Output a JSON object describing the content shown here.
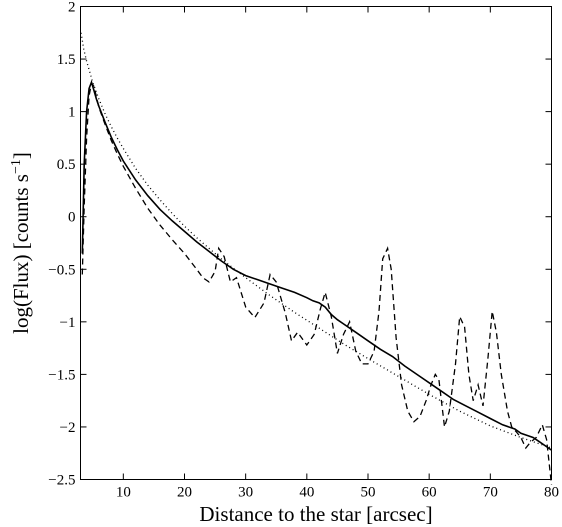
{
  "chart_data": {
    "type": "line",
    "title": "",
    "xlabel": "Distance to the star [arcsec]",
    "ylabel_main": "log(Flux) [counts s",
    "ylabel_sup": "−1",
    "ylabel_close": "]",
    "xlim": [
      3,
      80
    ],
    "ylim": [
      -2.5,
      2
    ],
    "xticks": [
      10,
      20,
      30,
      40,
      50,
      60,
      70,
      80
    ],
    "yticks": [
      -2.5,
      -2,
      -1.5,
      -1,
      -0.5,
      0,
      0.5,
      1,
      1.5,
      2
    ],
    "xtick_labels": [
      "10",
      "20",
      "30",
      "40",
      "50",
      "60",
      "70",
      "80"
    ],
    "ytick_labels": [
      "−2.5",
      "−2",
      "−1.5",
      "−1",
      "−0.5",
      "0",
      "0.5",
      "1",
      "1.5",
      "2"
    ],
    "grid": false,
    "series": [
      {
        "style": "solid",
        "x": [
          3.3,
          3.6,
          4.0,
          4.4,
          4.8,
          5.2,
          5.6,
          6,
          7,
          8,
          9,
          10,
          12,
          14,
          16,
          18,
          20,
          22,
          24,
          26,
          28,
          30,
          32,
          34,
          36,
          38,
          40,
          41,
          42,
          43,
          44,
          45,
          46,
          48,
          50,
          52,
          54,
          56,
          58,
          60,
          62,
          64,
          66,
          68,
          70,
          72,
          74,
          75,
          76,
          77,
          78,
          79,
          80
        ],
        "y": [
          -0.35,
          0.5,
          1.0,
          1.22,
          1.28,
          1.2,
          1.12,
          1.05,
          0.9,
          0.76,
          0.64,
          0.53,
          0.35,
          0.2,
          0.07,
          -0.04,
          -0.14,
          -0.24,
          -0.33,
          -0.42,
          -0.5,
          -0.56,
          -0.6,
          -0.64,
          -0.68,
          -0.72,
          -0.77,
          -0.8,
          -0.82,
          -0.86,
          -0.93,
          -0.98,
          -1.02,
          -1.1,
          -1.18,
          -1.26,
          -1.33,
          -1.42,
          -1.5,
          -1.58,
          -1.66,
          -1.74,
          -1.8,
          -1.86,
          -1.92,
          -1.98,
          -2.02,
          -2.06,
          -2.08,
          -2.1,
          -2.14,
          -2.18,
          -2.22
        ]
      },
      {
        "style": "dashed",
        "x": [
          3.3,
          3.6,
          4.0,
          4.4,
          4.8,
          5.2,
          5.6,
          6,
          7,
          8,
          9,
          10,
          12,
          14,
          16,
          18,
          20,
          22,
          23,
          24,
          25,
          25.6,
          26.5,
          27.5,
          28.5,
          30,
          31.5,
          33,
          34,
          35,
          36.5,
          37.5,
          38.5,
          40,
          41.2,
          42.2,
          43,
          44,
          45,
          46,
          47,
          48,
          49,
          50,
          51,
          51.8,
          52.4,
          53.2,
          53.8,
          54.6,
          55.5,
          56.5,
          57.5,
          58.5,
          59.5,
          60.3,
          61,
          61.6,
          62.5,
          63.3,
          64.3,
          65,
          65.8,
          66.5,
          67.2,
          68,
          68.8,
          69.6,
          70.3,
          71,
          71.8,
          72.8,
          73.5,
          74.3,
          75,
          75.8,
          76.5,
          77.5,
          78.5,
          79.2,
          80
        ],
        "y": [
          -0.55,
          0.1,
          0.75,
          1.15,
          1.27,
          1.24,
          1.14,
          1.04,
          0.88,
          0.73,
          0.6,
          0.48,
          0.27,
          0.08,
          -0.08,
          -0.22,
          -0.35,
          -0.5,
          -0.58,
          -0.62,
          -0.52,
          -0.3,
          -0.38,
          -0.62,
          -0.58,
          -0.86,
          -0.96,
          -0.82,
          -0.55,
          -0.62,
          -0.92,
          -1.18,
          -1.1,
          -1.22,
          -1.12,
          -0.88,
          -0.72,
          -0.95,
          -1.3,
          -1.12,
          -1.0,
          -1.28,
          -1.4,
          -1.4,
          -1.28,
          -0.9,
          -0.4,
          -0.3,
          -0.5,
          -1.15,
          -1.6,
          -1.85,
          -1.95,
          -1.9,
          -1.75,
          -1.6,
          -1.5,
          -1.55,
          -2.0,
          -1.85,
          -1.4,
          -0.95,
          -1.05,
          -1.5,
          -1.75,
          -1.6,
          -1.8,
          -1.35,
          -0.9,
          -1.1,
          -1.5,
          -1.85,
          -2.0,
          -2.05,
          -2.1,
          -2.2,
          -2.15,
          -2.1,
          -1.98,
          -2.12,
          -2.55
        ]
      },
      {
        "style": "dotted",
        "x": [
          3.1,
          3.5,
          4,
          4.5,
          5,
          5.5,
          6,
          7,
          8,
          9,
          10,
          12,
          14,
          16,
          18,
          20,
          22,
          24,
          26,
          28,
          30,
          34,
          38,
          42,
          46,
          50,
          55,
          60,
          65,
          70,
          75,
          80
        ],
        "y": [
          1.75,
          1.6,
          1.48,
          1.38,
          1.28,
          1.2,
          1.12,
          0.98,
          0.86,
          0.75,
          0.65,
          0.46,
          0.3,
          0.16,
          0.03,
          -0.09,
          -0.2,
          -0.3,
          -0.4,
          -0.49,
          -0.58,
          -0.75,
          -0.91,
          -1.06,
          -1.21,
          -1.35,
          -1.52,
          -1.69,
          -1.85,
          -1.99,
          -2.1,
          -2.2
        ]
      }
    ]
  }
}
